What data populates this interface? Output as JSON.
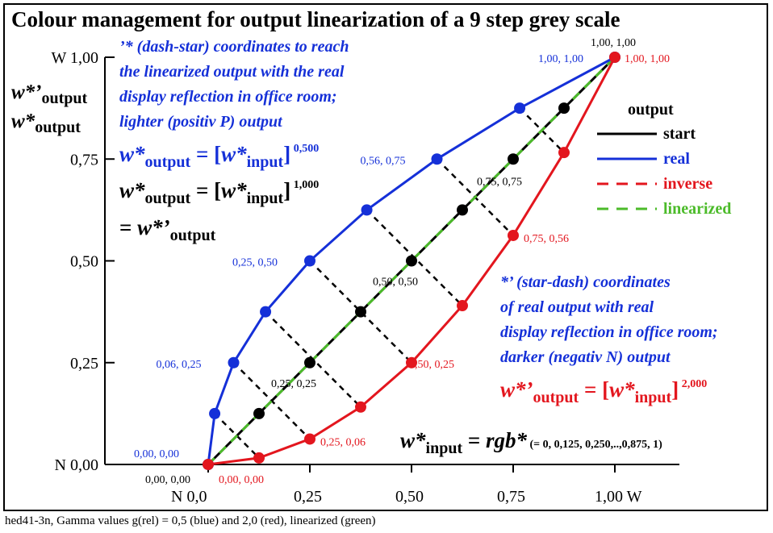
{
  "chart_data": {
    "type": "line",
    "title": "Colour management for output linearization of a 9 step grey scale",
    "xlim": [
      0,
      1
    ],
    "ylim": [
      0,
      1
    ],
    "x_ticks": [
      {
        "v": 0,
        "label": "N  0,0"
      },
      {
        "v": 0.25,
        "label": "0,25"
      },
      {
        "v": 0.5,
        "label": "0,50"
      },
      {
        "v": 0.75,
        "label": "0,75"
      },
      {
        "v": 1,
        "label": "1,00  W"
      }
    ],
    "y_ticks": [
      {
        "v": 0,
        "label": "N 0,00"
      },
      {
        "v": 0.25,
        "label": "0,25"
      },
      {
        "v": 0.5,
        "label": "0,50"
      },
      {
        "v": 0.75,
        "label": "0,75"
      },
      {
        "v": 1,
        "label": "W 1,00"
      }
    ],
    "ylabel_lines": [
      "w*’",
      "output",
      "w*",
      "output"
    ],
    "series": [
      {
        "key": "blue",
        "color": "#1530d8",
        "points": [
          [
            0,
            0
          ],
          [
            0.016,
            0.125
          ],
          [
            0.0625,
            0.25
          ],
          [
            0.141,
            0.375
          ],
          [
            0.25,
            0.5
          ],
          [
            0.39,
            0.625
          ],
          [
            0.5625,
            0.75
          ],
          [
            0.766,
            0.875
          ],
          [
            1,
            1
          ]
        ]
      },
      {
        "key": "black",
        "color": "#000000",
        "points": [
          [
            0.125,
            0.125
          ],
          [
            0.25,
            0.25
          ],
          [
            0.375,
            0.375
          ],
          [
            0.5,
            0.5
          ],
          [
            0.625,
            0.625
          ],
          [
            0.75,
            0.75
          ],
          [
            0.875,
            0.875
          ]
        ]
      },
      {
        "key": "red",
        "color": "#e3161e",
        "points": [
          [
            0,
            0
          ],
          [
            0.125,
            0.016
          ],
          [
            0.25,
            0.0625
          ],
          [
            0.375,
            0.141
          ],
          [
            0.5,
            0.25
          ],
          [
            0.625,
            0.39
          ],
          [
            0.75,
            0.5625
          ],
          [
            0.875,
            0.766
          ],
          [
            1,
            1
          ]
        ]
      }
    ],
    "diagonal_color_black": "#000000",
    "diagonal_color_green": "#4cbb2a",
    "connectors": [
      [
        [
          0.016,
          0.125
        ],
        [
          0.125,
          0.016
        ]
      ],
      [
        [
          0.0625,
          0.25
        ],
        [
          0.25,
          0.0625
        ]
      ],
      [
        [
          0.141,
          0.375
        ],
        [
          0.375,
          0.141
        ]
      ],
      [
        [
          0.25,
          0.5
        ],
        [
          0.5,
          0.25
        ]
      ],
      [
        [
          0.39,
          0.625
        ],
        [
          0.625,
          0.39
        ]
      ],
      [
        [
          0.5625,
          0.75
        ],
        [
          0.75,
          0.5625
        ]
      ],
      [
        [
          0.766,
          0.875
        ],
        [
          0.875,
          0.766
        ]
      ]
    ],
    "point_labels": [
      {
        "text": "1,00, 1,00",
        "color": "#000000",
        "x": 1,
        "y": 1,
        "dx": -30,
        "dy": -14,
        "size": 14
      },
      {
        "text": "1,00, 1,00",
        "color": "#1530d8",
        "x": 1,
        "y": 1,
        "dx": -95,
        "dy": 6,
        "size": 14
      },
      {
        "text": "1,00, 1,00",
        "color": "#e3161e",
        "x": 1,
        "y": 1,
        "dx": 12,
        "dy": 6,
        "size": 14
      },
      {
        "text": "0,56, 0,75",
        "color": "#1530d8",
        "x": 0.5625,
        "y": 0.75,
        "dx": -95,
        "dy": 6,
        "size": 14
      },
      {
        "text": "0,75, 0,75",
        "color": "#000000",
        "x": 0.75,
        "y": 0.75,
        "dx": -45,
        "dy": 32,
        "size": 14
      },
      {
        "text": "0,75, 0,56",
        "color": "#e3161e",
        "x": 0.75,
        "y": 0.5625,
        "dx": 13,
        "dy": 8,
        "size": 14
      },
      {
        "text": "0,25, 0,50",
        "color": "#1530d8",
        "x": 0.25,
        "y": 0.5,
        "dx": -96,
        "dy": 6,
        "size": 14
      },
      {
        "text": "0,50, 0,50",
        "color": "#000000",
        "x": 0.5,
        "y": 0.5,
        "dx": -48,
        "dy": 30,
        "size": 14
      },
      {
        "text": "0,06, 0,25",
        "color": "#1530d8",
        "x": 0.0625,
        "y": 0.25,
        "dx": -96,
        "dy": 6,
        "size": 14
      },
      {
        "text": "0,50, 0,25",
        "color": "#e3161e",
        "x": 0.5,
        "y": 0.25,
        "dx": -3,
        "dy": 6,
        "size": 14
      },
      {
        "text": "0,25, 0,25",
        "color": "#000000",
        "x": 0.25,
        "y": 0.25,
        "dx": -48,
        "dy": 30,
        "size": 14
      },
      {
        "text": "0,25, 0,06",
        "color": "#e3161e",
        "x": 0.25,
        "y": 0.0625,
        "dx": 13,
        "dy": 8,
        "size": 14
      },
      {
        "text": "0,00, 0,00",
        "color": "#1530d8",
        "x": 0,
        "y": 0,
        "dx": -92,
        "dy": -9,
        "size": 14
      },
      {
        "text": "0,00, 0,00",
        "color": "#000000",
        "x": 0,
        "y": 0,
        "dx": -78,
        "dy": 23,
        "size": 14
      },
      {
        "text": "0,00, 0,00",
        "color": "#e3161e",
        "x": 0,
        "y": 0,
        "dx": 13,
        "dy": 23,
        "size": 14
      }
    ],
    "legend": {
      "title": "output",
      "items": [
        {
          "label": "start",
          "color": "#000000",
          "dashed": false
        },
        {
          "label": "real",
          "color": "#1530d8",
          "dashed": false
        },
        {
          "label": "inverse",
          "color": "#e3161e",
          "dashed": true
        },
        {
          "label": "linearized",
          "color": "#4cbb2a",
          "dashed": true
        }
      ]
    },
    "annotations_blue_top": [
      "’* (dash-star) coordinates to reach",
      "the linearized output with the real",
      "display reflection in office room;",
      "lighter (positiv P) output"
    ],
    "formula_blue": {
      "lhs": "w*",
      "sub": "output",
      "mid": " = [",
      "v": "w*",
      "vsub": "input",
      "end": "]",
      "exp": "0,500"
    },
    "formula_black": {
      "lhs": "w*",
      "sub": "output",
      "mid": " = [",
      "v": "w*",
      "vsub": "input",
      "end": "]",
      "exp": "1,000"
    },
    "formula_black2": {
      "pre": "= ",
      "lhs": "w*’",
      "sub": "output"
    },
    "annotations_blue_right": [
      "*’ (star-dash) coordinates",
      "of real output with real",
      "display reflection in office room;",
      "darker (negativ N) output"
    ],
    "formula_red": {
      "lhs": "w*’",
      "sub": "output",
      "mid": " = [",
      "v": "w*",
      "vsub": "input",
      "end": "]",
      "exp": "2,000"
    },
    "formula_input": {
      "lhs": "w*",
      "sub": "input",
      "mid": " = ",
      "rhs": "rgb*",
      "note": " (= 0, 0,125, 0,250,..,0,875, 1)"
    }
  },
  "footer": "hed41-3n, Gamma values g(rel) = 0,5 (blue) and 2,0 (red), linearized (green)"
}
